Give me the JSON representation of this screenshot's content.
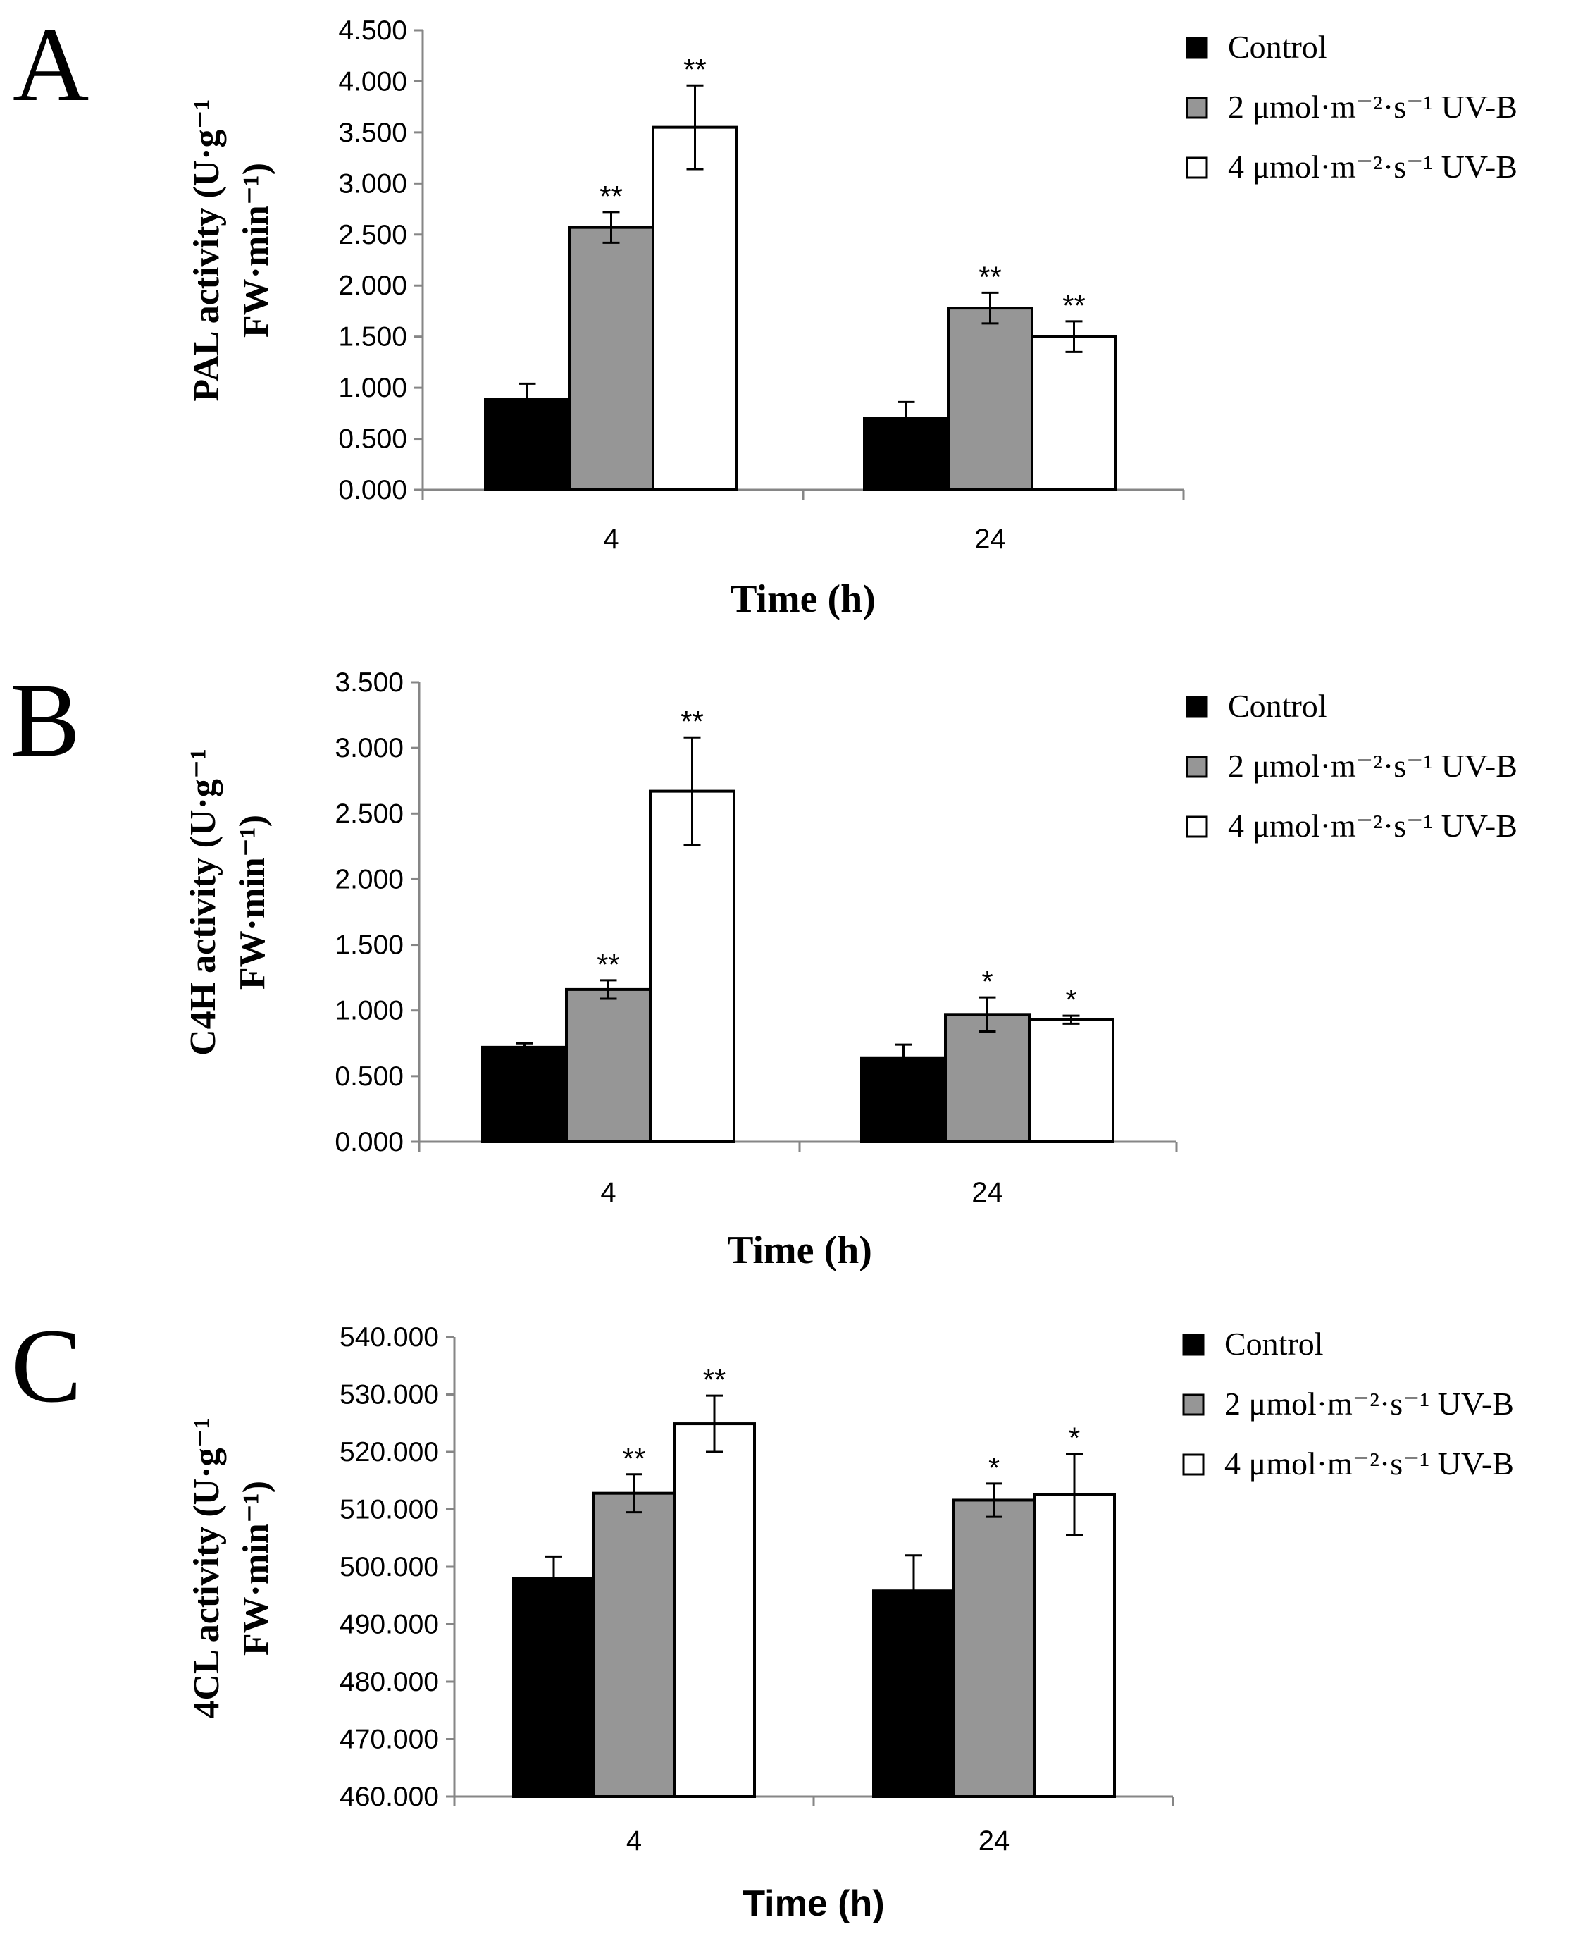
{
  "chart_data": [
    {
      "type": "bar",
      "panel": "A",
      "xlabel": "Time (h)",
      "ylabel_line1": "PAL activity (U·g⁻¹",
      "ylabel_line2": "FW·min⁻¹)",
      "categories": [
        "4",
        "24"
      ],
      "ylim": [
        0,
        4.5
      ],
      "yticks": [
        "0.000",
        "0.500",
        "1.000",
        "1.500",
        "2.000",
        "2.500",
        "3.000",
        "3.500",
        "4.000",
        "4.500"
      ],
      "series": [
        {
          "name": "Control",
          "values": [
            0.89,
            0.7
          ],
          "errors": [
            0.15,
            0.16
          ],
          "sig": [
            "",
            ""
          ]
        },
        {
          "name": "2 μmol·m⁻²·s⁻¹ UV-B",
          "values": [
            2.57,
            1.78
          ],
          "errors": [
            0.15,
            0.15
          ],
          "sig": [
            "**",
            "**"
          ]
        },
        {
          "name": "4 μmol·m⁻²·s⁻¹ UV-B",
          "values": [
            3.55,
            1.5
          ],
          "errors": [
            0.41,
            0.15
          ],
          "sig": [
            "**",
            "**"
          ]
        }
      ]
    },
    {
      "type": "bar",
      "panel": "B",
      "xlabel": "Time (h)",
      "ylabel_line1": "C4H activity (U·g⁻¹",
      "ylabel_line2": "FW·min⁻¹)",
      "categories": [
        "4",
        "24"
      ],
      "ylim": [
        0,
        3.5
      ],
      "yticks": [
        "0.000",
        "0.500",
        "1.000",
        "1.500",
        "2.000",
        "2.500",
        "3.000",
        "3.500"
      ],
      "series": [
        {
          "name": "Control",
          "values": [
            0.72,
            0.64
          ],
          "errors": [
            0.03,
            0.1
          ],
          "sig": [
            "",
            ""
          ]
        },
        {
          "name": "2 μmol·m⁻²·s⁻¹ UV-B",
          "values": [
            1.16,
            0.97
          ],
          "errors": [
            0.07,
            0.13
          ],
          "sig": [
            "**",
            "*"
          ]
        },
        {
          "name": "4 μmol·m⁻²·s⁻¹ UV-B",
          "values": [
            2.67,
            0.93
          ],
          "errors": [
            0.41,
            0.03
          ],
          "sig": [
            "**",
            "*"
          ]
        }
      ]
    },
    {
      "type": "bar",
      "panel": "C",
      "xlabel": "Time (h)",
      "ylabel_line1": "4CL activity (U·g⁻¹",
      "ylabel_line2": "FW·min⁻¹)",
      "categories": [
        "4",
        "24"
      ],
      "ylim": [
        460,
        540
      ],
      "yticks": [
        "460.000",
        "470.000",
        "480.000",
        "490.000",
        "500.000",
        "510.000",
        "520.000",
        "530.000",
        "540.000"
      ],
      "series": [
        {
          "name": "Control",
          "values": [
            498.0,
            495.8
          ],
          "errors": [
            3.8,
            6.2
          ],
          "sig": [
            "",
            ""
          ]
        },
        {
          "name": "2 μmol·m⁻²·s⁻¹ UV-B",
          "values": [
            512.8,
            511.6
          ],
          "errors": [
            3.3,
            2.9
          ],
          "sig": [
            "**",
            "*"
          ]
        },
        {
          "name": "4 μmol·m⁻²·s⁻¹ UV-B",
          "values": [
            524.9,
            512.6
          ],
          "errors": [
            4.9,
            7.1
          ],
          "sig": [
            "**",
            "*"
          ]
        }
      ]
    }
  ],
  "colors": {
    "series": [
      "#000000",
      "#969696",
      "#ffffff"
    ],
    "stroke": "#000000"
  }
}
